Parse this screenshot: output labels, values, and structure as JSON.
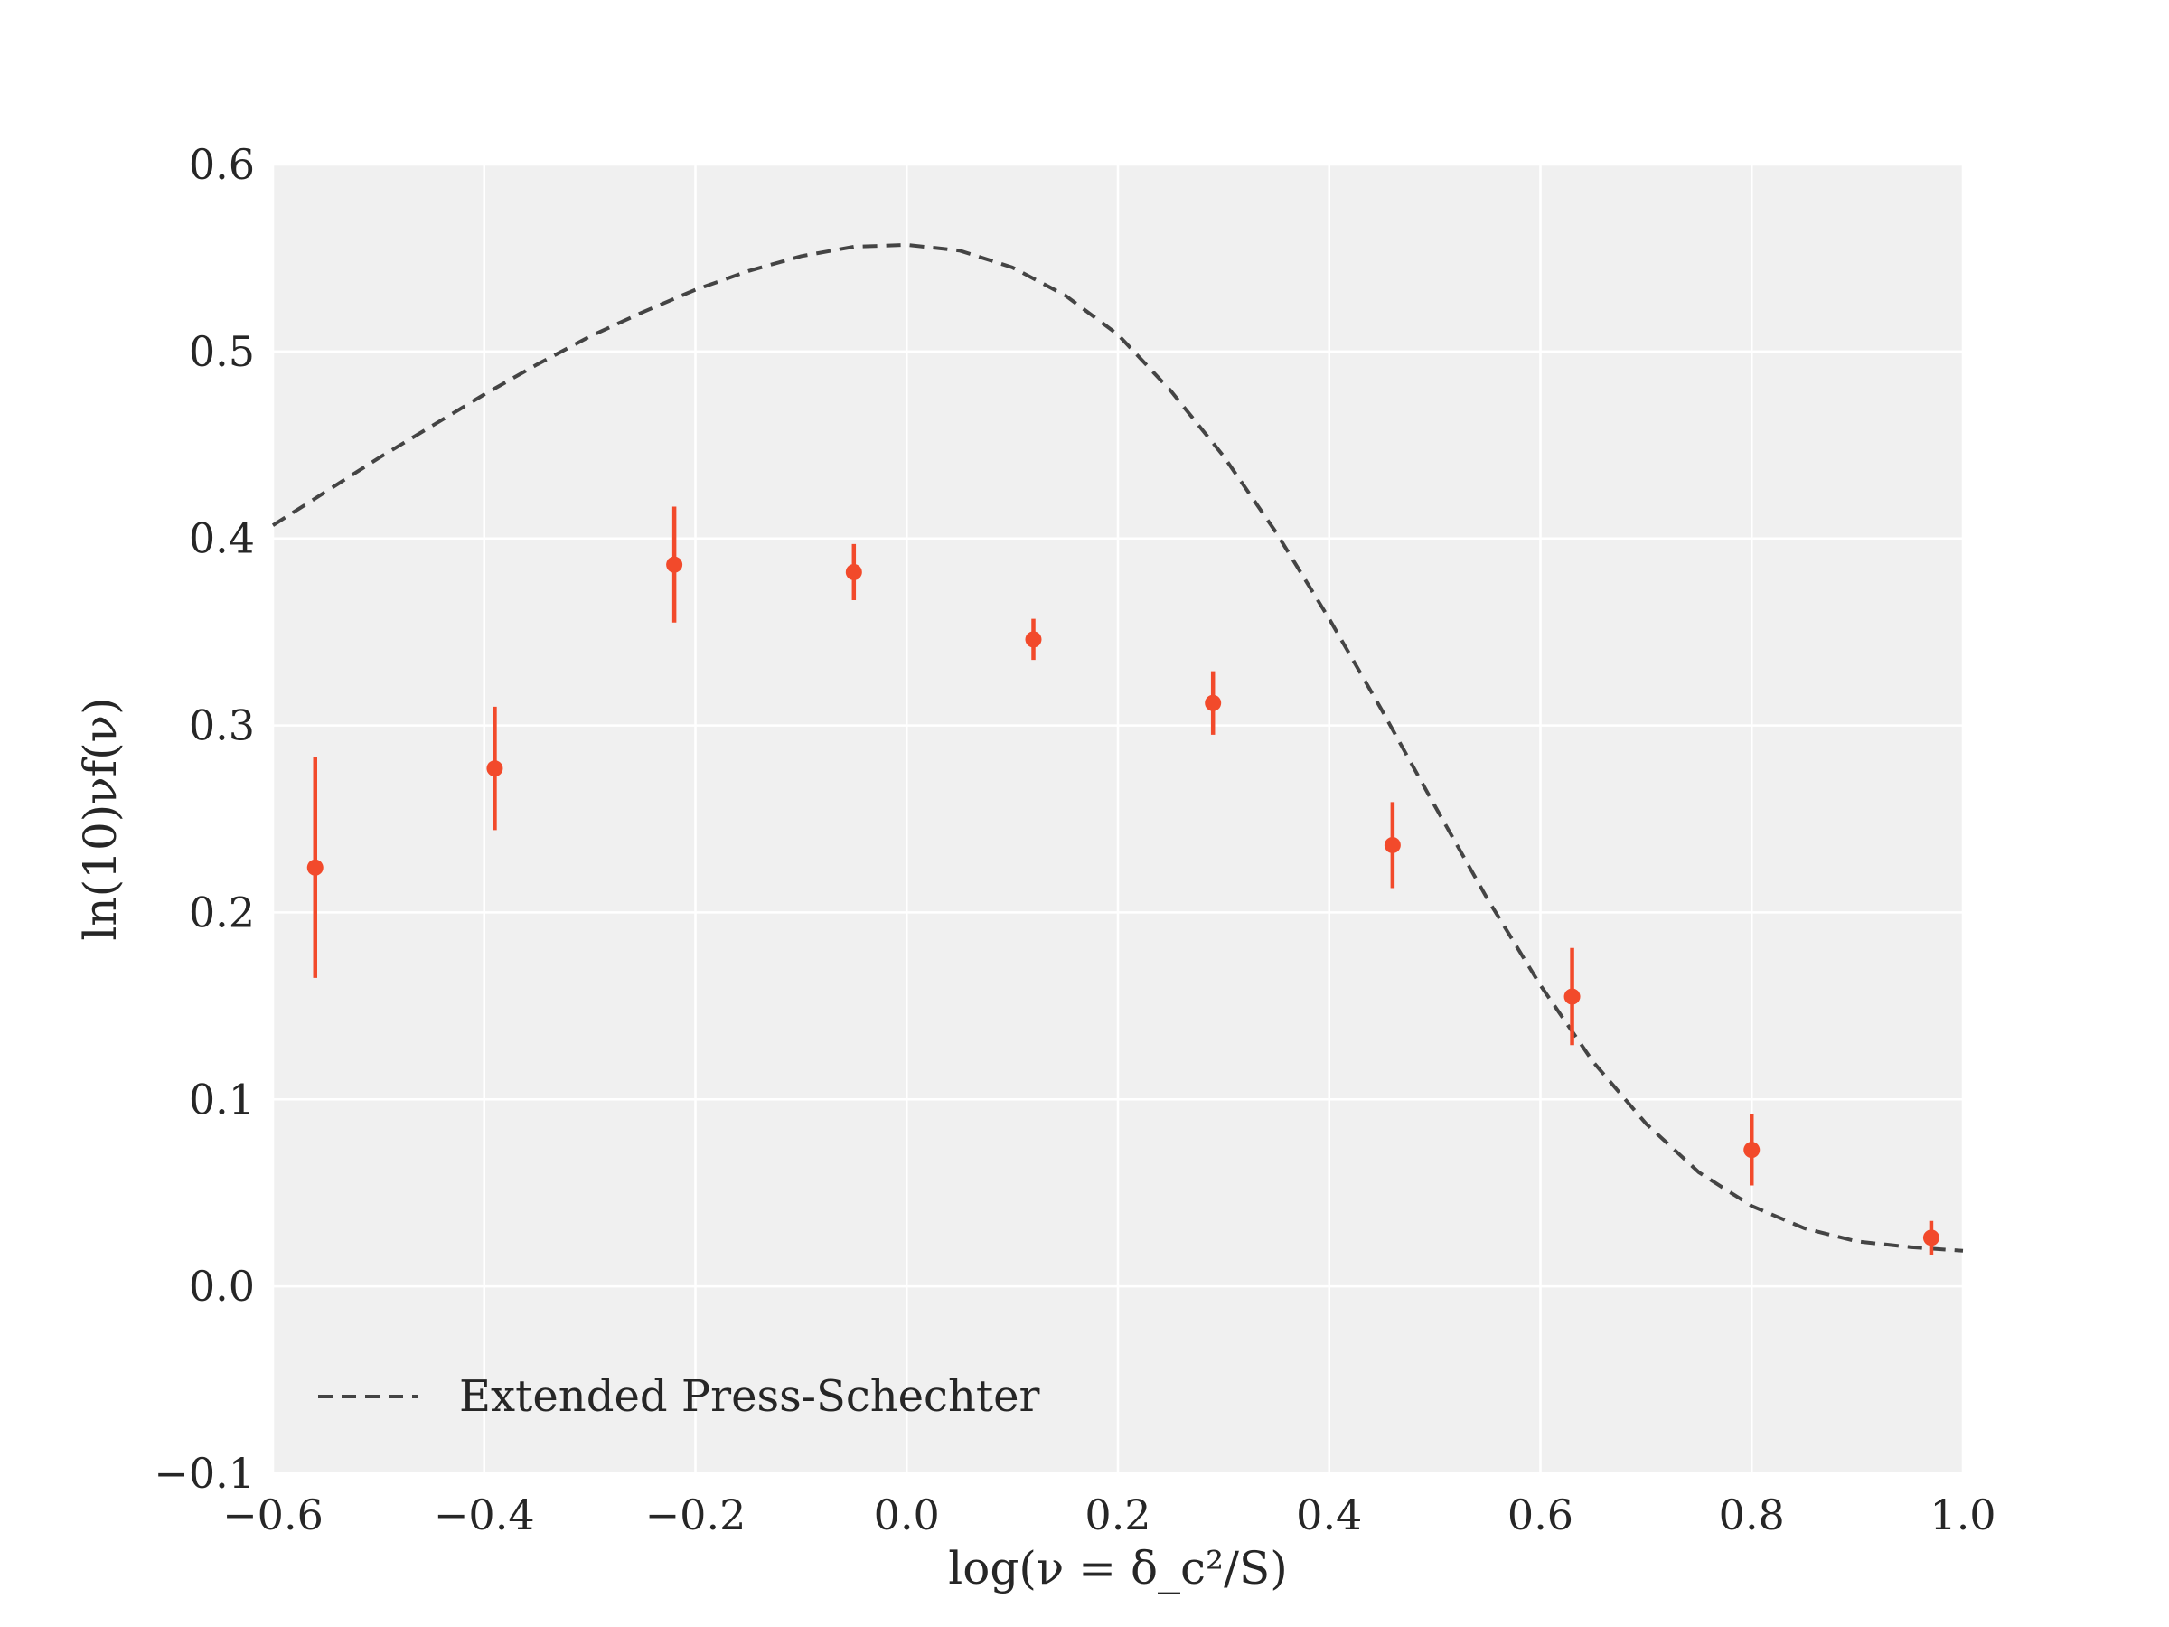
{
  "chart_data": {
    "type": "scatter",
    "xlabel": "log(ν = δ_c²/S)",
    "ylabel": "ln(10)νf(ν)",
    "xlim": [
      -0.6,
      1.0
    ],
    "ylim": [
      -0.1,
      0.6
    ],
    "x_ticks": [
      -0.6,
      -0.4,
      -0.2,
      0.0,
      0.2,
      0.4,
      0.6,
      0.8,
      1.0
    ],
    "y_ticks": [
      -0.1,
      0.0,
      0.1,
      0.2,
      0.3,
      0.4,
      0.5,
      0.6
    ],
    "x_tick_labels": [
      "−0.6",
      "−0.4",
      "−0.2",
      "0.0",
      "0.2",
      "0.4",
      "0.6",
      "0.8",
      "1.0"
    ],
    "y_tick_labels": [
      "−0.1",
      "0.0",
      "0.1",
      "0.2",
      "0.3",
      "0.4",
      "0.5",
      "0.6"
    ],
    "grid": true,
    "background": "#f0f0f0",
    "legend_position": "lower-left",
    "series": [
      {
        "name": "Extended Press-Schechter",
        "kind": "line",
        "style": "dashed",
        "color": "#444444",
        "x": [
          -0.6,
          -0.55,
          -0.5,
          -0.45,
          -0.4,
          -0.35,
          -0.3,
          -0.25,
          -0.2,
          -0.15,
          -0.1,
          -0.05,
          0.0,
          0.05,
          0.1,
          0.15,
          0.2,
          0.25,
          0.3,
          0.35,
          0.4,
          0.45,
          0.5,
          0.55,
          0.6,
          0.65,
          0.7,
          0.75,
          0.8,
          0.85,
          0.9,
          0.95,
          1.0
        ],
        "y": [
          0.407,
          0.425,
          0.443,
          0.46,
          0.477,
          0.493,
          0.508,
          0.521,
          0.533,
          0.543,
          0.551,
          0.556,
          0.557,
          0.554,
          0.545,
          0.53,
          0.509,
          0.479,
          0.444,
          0.403,
          0.357,
          0.308,
          0.257,
          0.207,
          0.161,
          0.12,
          0.087,
          0.061,
          0.043,
          0.031,
          0.024,
          0.021,
          0.019
        ]
      },
      {
        "kind": "errorbar",
        "color": "#f24a2b",
        "x": [
          -0.56,
          -0.39,
          -0.22,
          -0.05,
          0.12,
          0.29,
          0.46,
          0.63,
          0.8,
          0.97
        ],
        "y": [
          0.224,
          0.277,
          0.386,
          0.382,
          0.346,
          0.312,
          0.236,
          0.155,
          0.073,
          0.026
        ],
        "yerr": [
          0.059,
          0.033,
          0.031,
          0.015,
          0.011,
          0.017,
          0.023,
          0.026,
          0.019,
          0.009
        ]
      }
    ]
  }
}
